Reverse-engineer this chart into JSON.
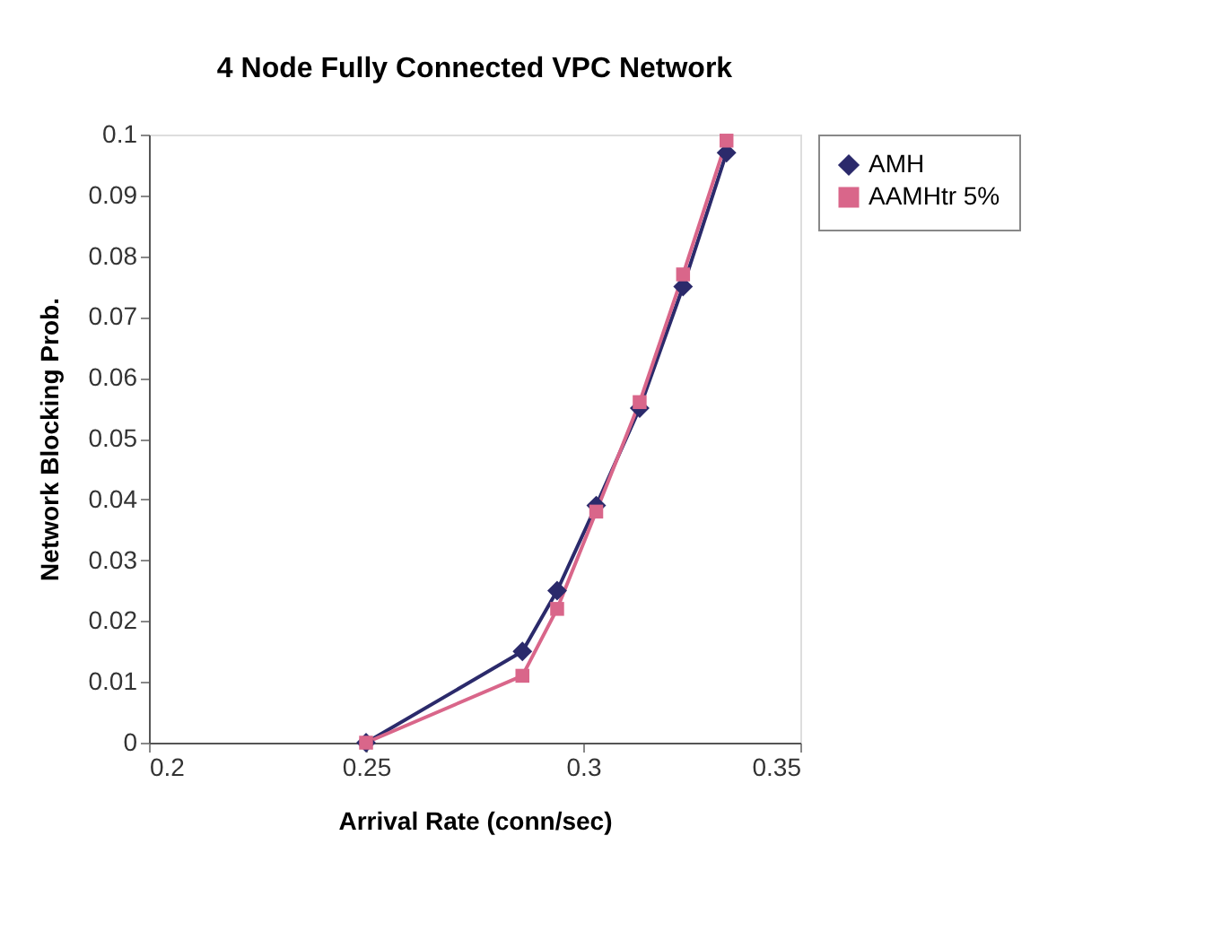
{
  "chart_data": {
    "type": "line",
    "title": "4 Node Fully Connected VPC Network",
    "xlabel": "Arrival Rate (conn/sec)",
    "ylabel": "Network Blocking Prob.",
    "x": [
      0.25,
      0.286,
      0.294,
      0.303,
      0.313,
      0.323,
      0.333
    ],
    "series": [
      {
        "name": "AMH",
        "color": "#2b2a6b",
        "marker": "diamond",
        "values": [
          0,
          0.015,
          0.025,
          0.039,
          0.055,
          0.075,
          0.097
        ]
      },
      {
        "name": "AAMHtr 5%",
        "color": "#d9668a",
        "marker": "square",
        "values": [
          0,
          0.011,
          0.022,
          0.038,
          0.056,
          0.077,
          0.099
        ]
      }
    ],
    "xlim": [
      0.2,
      0.35
    ],
    "xticks": [
      0.2,
      0.25,
      0.3,
      0.35
    ],
    "ylim": [
      0,
      0.1
    ],
    "yticks": [
      0,
      0.01,
      0.02,
      0.03,
      0.04,
      0.05,
      0.06,
      0.07,
      0.08,
      0.09,
      0.1
    ],
    "grid": false,
    "legend": "right",
    "line_style": "solid"
  }
}
